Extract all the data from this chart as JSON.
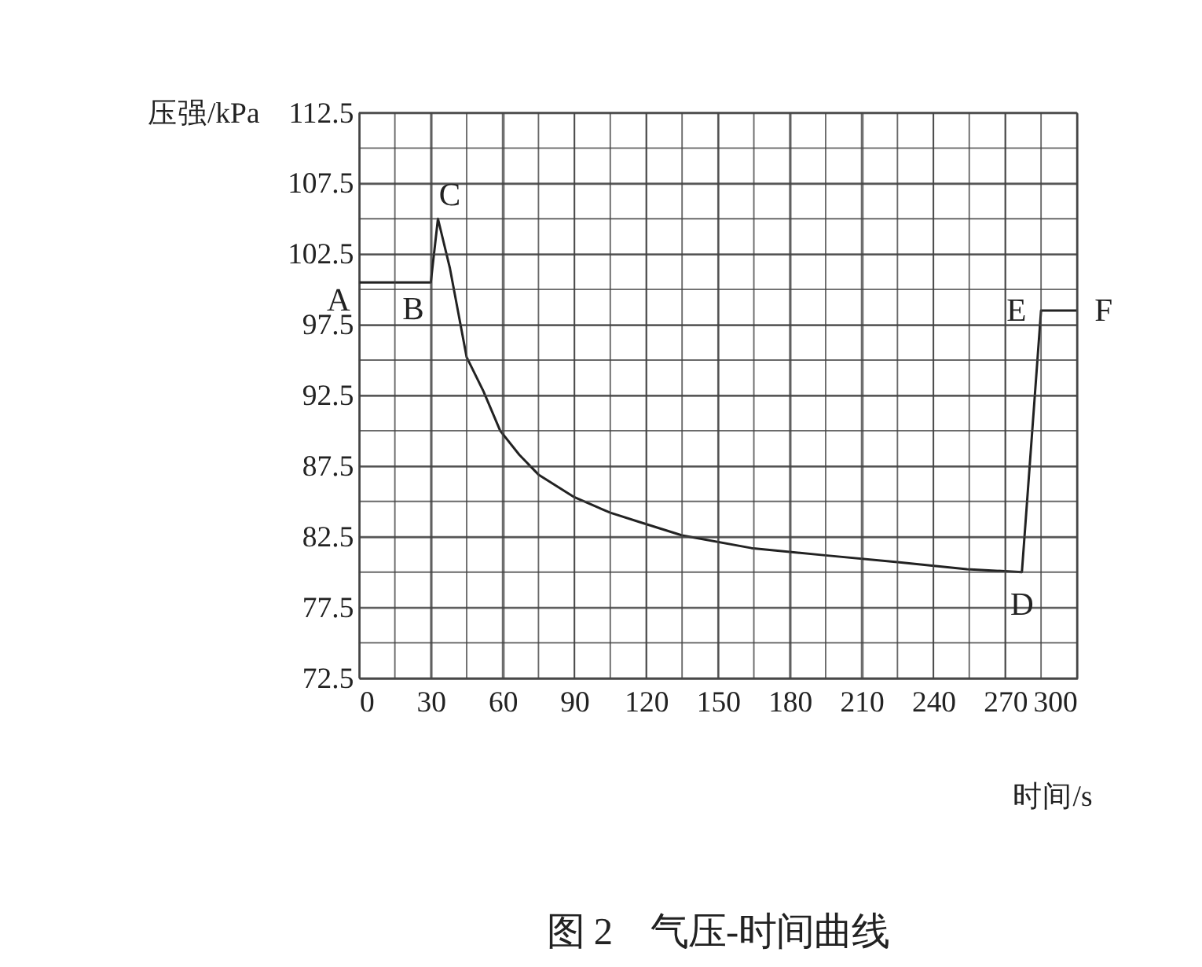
{
  "chart_data": {
    "type": "line",
    "title": "图 2　气压-时间曲线",
    "xlabel": "时间/s",
    "ylabel": "压强/kPa",
    "x": [
      0,
      30,
      33,
      38,
      45,
      52,
      59,
      67,
      75,
      90,
      105,
      118,
      135,
      164,
      194,
      225,
      254,
      277,
      285,
      300
    ],
    "series": [
      {
        "color": "#222222",
        "values": [
          100.5,
          100.5,
          105,
          101.5,
          95.2,
          92.8,
          90,
          88.3,
          86.9,
          85.3,
          84.2,
          83.5,
          82.6,
          81.7,
          81.2,
          80.7,
          80.2,
          80,
          98.5,
          98.5
        ]
      }
    ],
    "xlim": [
      0,
      300
    ],
    "ylim": [
      72.5,
      112.5
    ],
    "xticks": [
      0,
      {
        "value": 15,
        "label": null
      },
      30,
      {
        "value": 45,
        "label": null
      },
      60,
      {
        "value": 75,
        "label": null
      },
      90,
      {
        "value": 105,
        "label": null
      },
      120,
      {
        "value": 135,
        "label": null
      },
      150,
      {
        "value": 165,
        "label": null
      },
      180,
      {
        "value": 195,
        "label": null
      },
      210,
      {
        "value": 225,
        "label": null
      },
      240,
      {
        "value": 255,
        "label": null
      },
      270,
      {
        "value": 285,
        "label": null
      },
      300
    ],
    "yticks": [
      72.5,
      {
        "value": 75,
        "label": null
      },
      77.5,
      {
        "value": 80,
        "label": null
      },
      82.5,
      {
        "value": 85,
        "label": null
      },
      87.5,
      {
        "value": 90,
        "label": null
      },
      92.5,
      {
        "value": 95,
        "label": null
      },
      97.5,
      {
        "value": 100,
        "label": null
      },
      102.5,
      {
        "value": 105,
        "label": null
      },
      107.5,
      {
        "value": 110,
        "label": null
      },
      112.5
    ],
    "grid": true,
    "marker": "none",
    "line_style": "solid",
    "annotations": [
      {
        "text": "A",
        "x": 0,
        "y": 100.5
      },
      {
        "text": "B",
        "x": 30,
        "y": 100.5
      },
      {
        "text": "C",
        "x": 33,
        "y": 105
      },
      {
        "text": "D",
        "x": 277,
        "y": 80
      },
      {
        "text": "E",
        "x": 285,
        "y": 98.5
      },
      {
        "text": "F",
        "x": 300,
        "y": 98.5
      }
    ]
  }
}
